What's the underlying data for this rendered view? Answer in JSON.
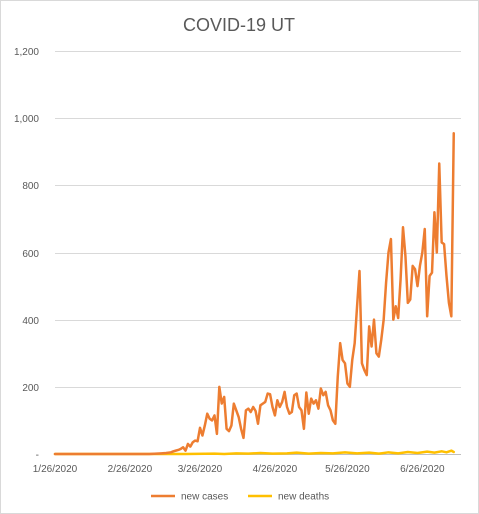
{
  "chart_data": {
    "type": "line",
    "title": "COVID-19 UT",
    "xlabel": "",
    "ylabel": "",
    "ylim": [
      0,
      1200
    ],
    "yticks": [
      0,
      200,
      400,
      600,
      800,
      1000,
      1200
    ],
    "ytick_labels": [
      "-",
      "200",
      "400",
      "600",
      "800",
      "1,000",
      "1,200"
    ],
    "xlim": [
      "2020-01-26",
      "2020-07-12"
    ],
    "xticks": [
      "2020-01-26",
      "2020-02-26",
      "2020-03-26",
      "2020-04-26",
      "2020-05-26",
      "2020-06-26"
    ],
    "xtick_labels": [
      "1/26/2020",
      "2/26/2020",
      "3/26/2020",
      "4/26/2020",
      "5/26/2020",
      "6/26/2020"
    ],
    "grid": true,
    "legend_position": "bottom",
    "series": [
      {
        "name": "new cases",
        "color": "#ED7D31",
        "points": [
          [
            "2020-01-26",
            0
          ],
          [
            "2020-02-26",
            0
          ],
          [
            "2020-03-05",
            0
          ],
          [
            "2020-03-08",
            1
          ],
          [
            "2020-03-10",
            2
          ],
          [
            "2020-03-12",
            3
          ],
          [
            "2020-03-14",
            5
          ],
          [
            "2020-03-15",
            8
          ],
          [
            "2020-03-16",
            10
          ],
          [
            "2020-03-17",
            12
          ],
          [
            "2020-03-18",
            15
          ],
          [
            "2020-03-19",
            20
          ],
          [
            "2020-03-20",
            10
          ],
          [
            "2020-03-21",
            30
          ],
          [
            "2020-03-22",
            22
          ],
          [
            "2020-03-23",
            35
          ],
          [
            "2020-03-24",
            40
          ],
          [
            "2020-03-25",
            38
          ],
          [
            "2020-03-26",
            78
          ],
          [
            "2020-03-27",
            55
          ],
          [
            "2020-03-28",
            85
          ],
          [
            "2020-03-29",
            120
          ],
          [
            "2020-03-30",
            105
          ],
          [
            "2020-03-31",
            100
          ],
          [
            "2020-04-01",
            115
          ],
          [
            "2020-04-02",
            60
          ],
          [
            "2020-04-03",
            200
          ],
          [
            "2020-04-04",
            150
          ],
          [
            "2020-04-05",
            170
          ],
          [
            "2020-04-06",
            75
          ],
          [
            "2020-04-07",
            68
          ],
          [
            "2020-04-08",
            85
          ],
          [
            "2020-04-09",
            150
          ],
          [
            "2020-04-10",
            130
          ],
          [
            "2020-04-11",
            110
          ],
          [
            "2020-04-12",
            75
          ],
          [
            "2020-04-13",
            48
          ],
          [
            "2020-04-14",
            130
          ],
          [
            "2020-04-15",
            135
          ],
          [
            "2020-04-16",
            125
          ],
          [
            "2020-04-17",
            140
          ],
          [
            "2020-04-18",
            128
          ],
          [
            "2020-04-19",
            90
          ],
          [
            "2020-04-20",
            145
          ],
          [
            "2020-04-21",
            150
          ],
          [
            "2020-04-22",
            155
          ],
          [
            "2020-04-23",
            180
          ],
          [
            "2020-04-24",
            178
          ],
          [
            "2020-04-25",
            140
          ],
          [
            "2020-04-26",
            115
          ],
          [
            "2020-04-27",
            160
          ],
          [
            "2020-04-28",
            140
          ],
          [
            "2020-04-29",
            155
          ],
          [
            "2020-04-30",
            185
          ],
          [
            "2020-05-01",
            140
          ],
          [
            "2020-05-02",
            120
          ],
          [
            "2020-05-03",
            125
          ],
          [
            "2020-05-04",
            175
          ],
          [
            "2020-05-05",
            180
          ],
          [
            "2020-05-06",
            140
          ],
          [
            "2020-05-07",
            130
          ],
          [
            "2020-05-08",
            75
          ],
          [
            "2020-05-09",
            183
          ],
          [
            "2020-05-10",
            120
          ],
          [
            "2020-05-11",
            165
          ],
          [
            "2020-05-12",
            150
          ],
          [
            "2020-05-13",
            160
          ],
          [
            "2020-05-14",
            135
          ],
          [
            "2020-05-15",
            195
          ],
          [
            "2020-05-16",
            175
          ],
          [
            "2020-05-17",
            185
          ],
          [
            "2020-05-18",
            145
          ],
          [
            "2020-05-19",
            130
          ],
          [
            "2020-05-20",
            100
          ],
          [
            "2020-05-21",
            90
          ],
          [
            "2020-05-22",
            230
          ],
          [
            "2020-05-23",
            330
          ],
          [
            "2020-05-24",
            280
          ],
          [
            "2020-05-25",
            270
          ],
          [
            "2020-05-26",
            210
          ],
          [
            "2020-05-27",
            200
          ],
          [
            "2020-05-28",
            280
          ],
          [
            "2020-05-29",
            330
          ],
          [
            "2020-05-30",
            440
          ],
          [
            "2020-05-31",
            545
          ],
          [
            "2020-06-01",
            270
          ],
          [
            "2020-06-02",
            250
          ],
          [
            "2020-06-03",
            235
          ],
          [
            "2020-06-04",
            380
          ],
          [
            "2020-06-05",
            320
          ],
          [
            "2020-06-06",
            400
          ],
          [
            "2020-06-07",
            300
          ],
          [
            "2020-06-08",
            290
          ],
          [
            "2020-06-09",
            340
          ],
          [
            "2020-06-10",
            400
          ],
          [
            "2020-06-11",
            510
          ],
          [
            "2020-06-12",
            600
          ],
          [
            "2020-06-13",
            640
          ],
          [
            "2020-06-14",
            400
          ],
          [
            "2020-06-15",
            440
          ],
          [
            "2020-06-16",
            405
          ],
          [
            "2020-06-17",
            520
          ],
          [
            "2020-06-18",
            675
          ],
          [
            "2020-06-19",
            590
          ],
          [
            "2020-06-20",
            450
          ],
          [
            "2020-06-21",
            460
          ],
          [
            "2020-06-22",
            560
          ],
          [
            "2020-06-23",
            550
          ],
          [
            "2020-06-24",
            500
          ],
          [
            "2020-06-25",
            560
          ],
          [
            "2020-06-26",
            600
          ],
          [
            "2020-06-27",
            670
          ],
          [
            "2020-06-28",
            410
          ],
          [
            "2020-06-29",
            530
          ],
          [
            "2020-06-30",
            540
          ],
          [
            "2020-07-01",
            720
          ],
          [
            "2020-07-02",
            600
          ],
          [
            "2020-07-03",
            865
          ],
          [
            "2020-07-04",
            630
          ],
          [
            "2020-07-05",
            625
          ],
          [
            "2020-07-06",
            530
          ],
          [
            "2020-07-07",
            450
          ],
          [
            "2020-07-08",
            410
          ],
          [
            "2020-07-09",
            955
          ]
        ]
      },
      {
        "name": "new deaths",
        "color": "#FFC000",
        "points": [
          [
            "2020-01-26",
            0
          ],
          [
            "2020-03-20",
            0
          ],
          [
            "2020-04-01",
            1
          ],
          [
            "2020-04-05",
            0
          ],
          [
            "2020-04-10",
            2
          ],
          [
            "2020-04-15",
            1
          ],
          [
            "2020-04-20",
            3
          ],
          [
            "2020-04-25",
            1
          ],
          [
            "2020-05-01",
            2
          ],
          [
            "2020-05-05",
            4
          ],
          [
            "2020-05-10",
            1
          ],
          [
            "2020-05-15",
            3
          ],
          [
            "2020-05-20",
            2
          ],
          [
            "2020-05-25",
            5
          ],
          [
            "2020-05-30",
            2
          ],
          [
            "2020-06-04",
            4
          ],
          [
            "2020-06-08",
            1
          ],
          [
            "2020-06-12",
            5
          ],
          [
            "2020-06-16",
            2
          ],
          [
            "2020-06-20",
            6
          ],
          [
            "2020-06-24",
            3
          ],
          [
            "2020-06-28",
            7
          ],
          [
            "2020-07-01",
            4
          ],
          [
            "2020-07-04",
            8
          ],
          [
            "2020-07-06",
            5
          ],
          [
            "2020-07-08",
            10
          ],
          [
            "2020-07-09",
            6
          ]
        ]
      }
    ]
  }
}
